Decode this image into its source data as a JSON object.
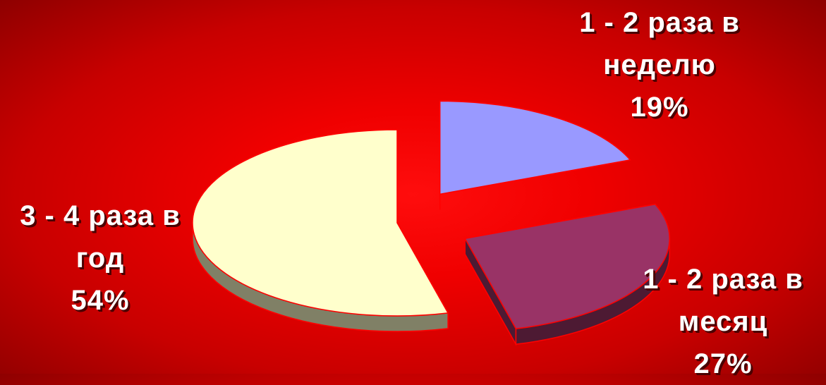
{
  "chart_data": {
    "type": "pie",
    "slices": [
      {
        "label_lines": [
          "1 - 2 раза в",
          "неделю"
        ],
        "percent_label": "19%",
        "value": 19,
        "color": "#9999ff",
        "side_color": "#55557f"
      },
      {
        "label_lines": [
          "1 - 2 раза в",
          "месяц"
        ],
        "percent_label": "27%",
        "value": 27,
        "color": "#993366",
        "side_color": "#4d1a33"
      },
      {
        "label_lines": [
          "3 - 4 раза в",
          "год"
        ],
        "percent_label": "54%",
        "value": 54,
        "color": "#ffffcc",
        "side_color": "#808066"
      }
    ],
    "style": "3d-exploded",
    "colors": {
      "edge": "#ff0000"
    }
  }
}
